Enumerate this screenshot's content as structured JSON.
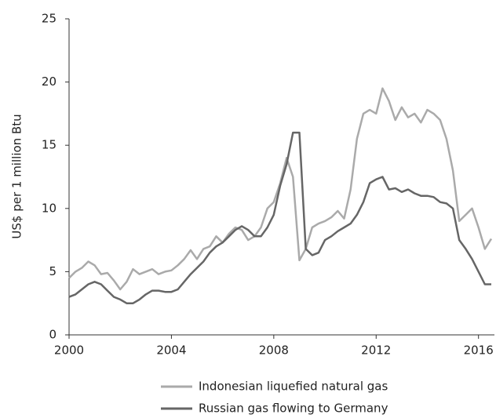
{
  "chart_data": {
    "type": "line",
    "ylabel": "US$ per 1 million Btu",
    "x": [
      2000,
      2000.25,
      2000.5,
      2000.75,
      2001,
      2001.25,
      2001.5,
      2001.75,
      2002,
      2002.25,
      2002.5,
      2002.75,
      2003,
      2003.25,
      2003.5,
      2003.75,
      2004,
      2004.25,
      2004.5,
      2004.75,
      2005,
      2005.25,
      2005.5,
      2005.75,
      2006,
      2006.25,
      2006.5,
      2006.75,
      2007,
      2007.25,
      2007.5,
      2007.75,
      2008,
      2008.25,
      2008.5,
      2008.75,
      2009,
      2009.25,
      2009.5,
      2009.75,
      2010,
      2010.25,
      2010.5,
      2010.75,
      2011,
      2011.25,
      2011.5,
      2011.75,
      2012,
      2012.25,
      2012.5,
      2012.75,
      2013,
      2013.25,
      2013.5,
      2013.75,
      2014,
      2014.25,
      2014.5,
      2014.75,
      2015,
      2015.25,
      2015.5,
      2015.75,
      2016,
      2016.25,
      2016.5
    ],
    "series": [
      {
        "name": "Indonesian liquefied natural gas",
        "color": "#aaaaaa",
        "values": [
          4.5,
          5,
          5.3,
          5.8,
          5.5,
          4.8,
          4.9,
          4.3,
          3.6,
          4.2,
          5.2,
          4.8,
          5.0,
          5.2,
          4.8,
          5.0,
          5.1,
          5.5,
          6.0,
          6.7,
          6.0,
          6.8,
          7.0,
          7.8,
          7.3,
          8.0,
          8.5,
          8.3,
          7.5,
          7.8,
          8.5,
          10.0,
          10.5,
          12.0,
          14.0,
          12.5,
          5.9,
          6.8,
          8.5,
          8.8,
          9.0,
          9.3,
          9.8,
          9.2,
          11.5,
          15.5,
          17.5,
          17.8,
          17.5,
          19.5,
          18.5,
          17.0,
          18.0,
          17.2,
          17.5,
          16.8,
          17.8,
          17.5,
          17.0,
          15.5,
          13.0,
          9.0,
          9.5,
          10.0,
          8.5,
          6.8,
          7.6
        ]
      },
      {
        "name": "Russian gas flowing to Germany",
        "color": "#666666",
        "values": [
          3.0,
          3.2,
          3.6,
          4.0,
          4.2,
          4.0,
          3.5,
          3.0,
          2.8,
          2.5,
          2.5,
          2.8,
          3.2,
          3.5,
          3.5,
          3.4,
          3.4,
          3.6,
          4.2,
          4.8,
          5.3,
          5.8,
          6.5,
          7.0,
          7.3,
          7.8,
          8.3,
          8.6,
          8.3,
          7.8,
          7.8,
          8.5,
          9.5,
          11.8,
          13.5,
          16.0,
          16.0,
          6.8,
          6.3,
          6.5,
          7.5,
          7.8,
          8.2,
          8.5,
          8.8,
          9.5,
          10.5,
          12.0,
          12.3,
          12.5,
          11.5,
          11.6,
          11.3,
          11.5,
          11.2,
          11.0,
          11.0,
          10.9,
          10.5,
          10.4,
          10.0,
          7.5,
          6.8,
          6.0,
          5.0,
          4.0,
          4.0
        ]
      }
    ],
    "xlim": [
      2000,
      2016.5
    ],
    "xticks": [
      2000,
      2004,
      2008,
      2012,
      2016
    ],
    "ylim": [
      0,
      25
    ],
    "yticks": [
      0,
      5,
      10,
      15,
      20,
      25
    ],
    "grid": false
  }
}
